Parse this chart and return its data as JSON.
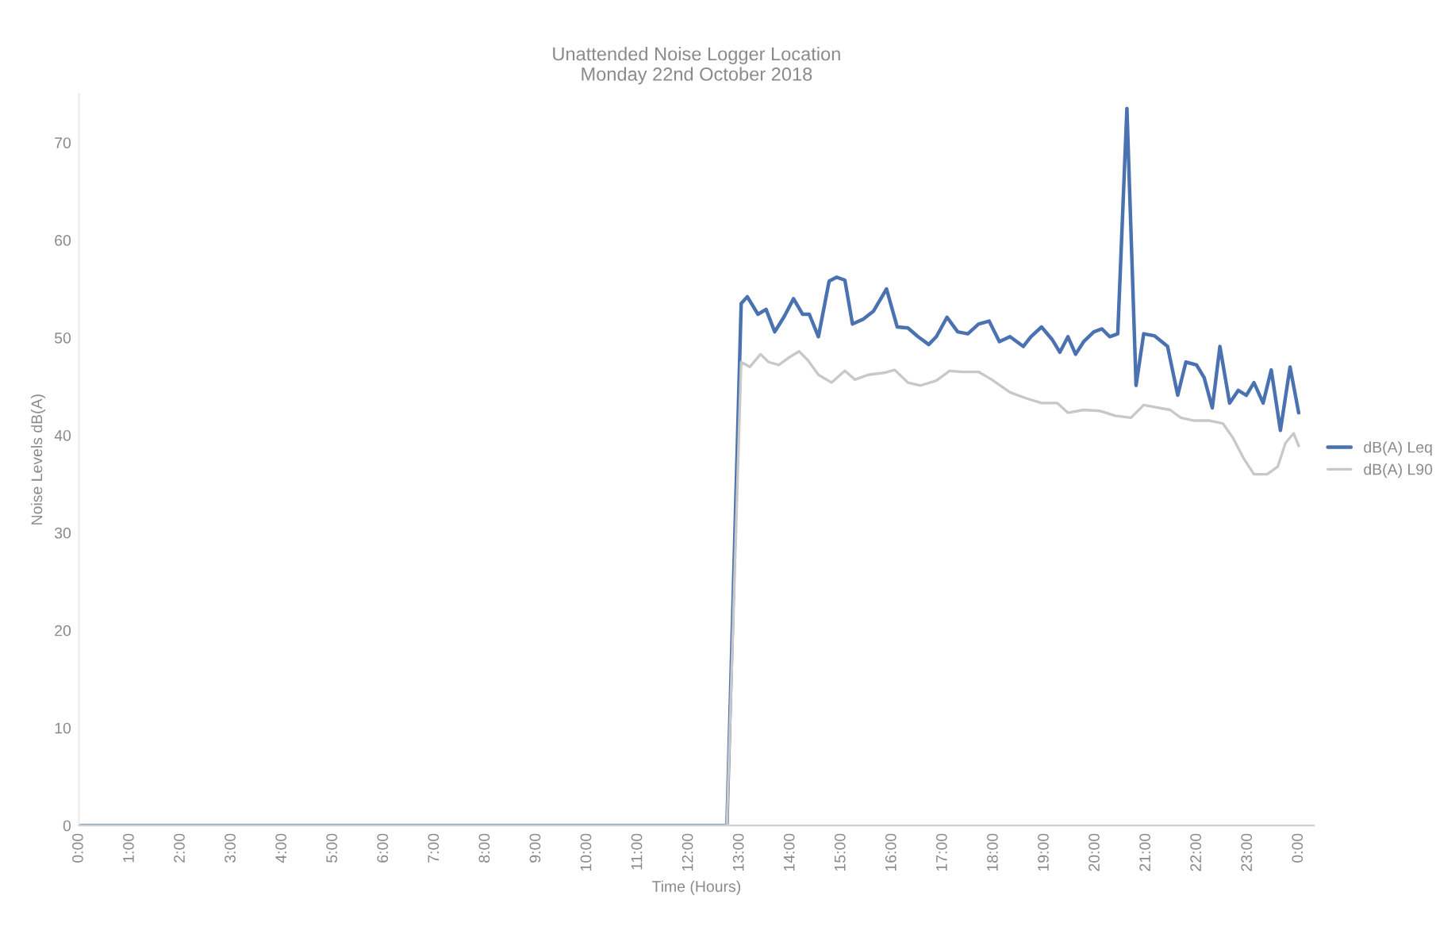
{
  "chart_data": {
    "type": "line",
    "title": "Unattended Noise Logger Location\nMonday 22nd October 2018",
    "xlabel": "Time (Hours)",
    "ylabel": "Noise Levels dB(A)",
    "xlim": [
      0,
      24.3
    ],
    "ylim": [
      0,
      75
    ],
    "xticks": [
      {
        "value": 0,
        "label": "0:00"
      },
      {
        "value": 1,
        "label": "1:00"
      },
      {
        "value": 2,
        "label": "2:00"
      },
      {
        "value": 3,
        "label": "3:00"
      },
      {
        "value": 4,
        "label": "4:00"
      },
      {
        "value": 5,
        "label": "5:00"
      },
      {
        "value": 6,
        "label": "6:00"
      },
      {
        "value": 7,
        "label": "7:00"
      },
      {
        "value": 8,
        "label": "8:00"
      },
      {
        "value": 9,
        "label": "9:00"
      },
      {
        "value": 10,
        "label": "10:00"
      },
      {
        "value": 11,
        "label": "11:00"
      },
      {
        "value": 12,
        "label": "12:00"
      },
      {
        "value": 13,
        "label": "13:00"
      },
      {
        "value": 14,
        "label": "14:00"
      },
      {
        "value": 15,
        "label": "15:00"
      },
      {
        "value": 16,
        "label": "16:00"
      },
      {
        "value": 17,
        "label": "17:00"
      },
      {
        "value": 18,
        "label": "18:00"
      },
      {
        "value": 19,
        "label": "19:00"
      },
      {
        "value": 20,
        "label": "20:00"
      },
      {
        "value": 21,
        "label": "21:00"
      },
      {
        "value": 22,
        "label": "22:00"
      },
      {
        "value": 23,
        "label": "23:00"
      },
      {
        "value": 24,
        "label": "0:00"
      }
    ],
    "yticks": [
      0,
      10,
      20,
      30,
      40,
      50,
      60,
      70
    ],
    "grid": false,
    "legend": "right",
    "marker": "none",
    "line_style": "solid",
    "series": [
      {
        "name": "dB(A) Leq",
        "color": "#4a72b0",
        "x": [
          0,
          12.75,
          13.03,
          13.15,
          13.36,
          13.52,
          13.69,
          13.88,
          14.06,
          14.24,
          14.37,
          14.55,
          14.76,
          14.91,
          15.07,
          15.22,
          15.43,
          15.63,
          15.89,
          16.1,
          16.31,
          16.51,
          16.72,
          16.87,
          17.08,
          17.29,
          17.49,
          17.7,
          17.91,
          18.11,
          18.32,
          18.58,
          18.73,
          18.94,
          19.15,
          19.3,
          19.46,
          19.61,
          19.77,
          19.97,
          20.13,
          20.28,
          20.44,
          20.62,
          20.8,
          20.95,
          21.16,
          21.42,
          21.62,
          21.78,
          21.99,
          22.14,
          22.3,
          22.45,
          22.64,
          22.81,
          22.97,
          23.12,
          23.3,
          23.46,
          23.64,
          23.83,
          24.0
        ],
        "values": [
          0,
          0,
          53.5,
          54.2,
          52.4,
          52.9,
          50.6,
          52.2,
          54,
          52.4,
          52.4,
          50.1,
          55.8,
          56.2,
          55.9,
          51.4,
          51.9,
          52.7,
          55,
          51.1,
          51,
          50.1,
          49.3,
          50.1,
          52.1,
          50.6,
          50.4,
          51.4,
          51.7,
          49.6,
          50.1,
          49.1,
          50.1,
          51.1,
          49.8,
          48.5,
          50.1,
          48.3,
          49.6,
          50.6,
          50.9,
          50.1,
          50.4,
          73.5,
          45.1,
          50.4,
          50.2,
          49.1,
          44.1,
          47.5,
          47.2,
          45.9,
          42.8,
          49.1,
          43.3,
          44.6,
          44.1,
          45.4,
          43.3,
          46.7,
          40.5,
          47,
          42.3
        ]
      },
      {
        "name": "dB(A) L90",
        "color": "#c8c8c8",
        "x": [
          0,
          12.75,
          13.03,
          13.2,
          13.41,
          13.57,
          13.77,
          13.98,
          14.17,
          14.34,
          14.55,
          14.81,
          15.07,
          15.27,
          15.53,
          15.84,
          16.05,
          16.31,
          16.56,
          16.87,
          17.13,
          17.39,
          17.7,
          17.96,
          18.32,
          18.63,
          18.94,
          19.25,
          19.46,
          19.77,
          20.08,
          20.39,
          20.7,
          20.95,
          21.16,
          21.47,
          21.68,
          21.94,
          22.25,
          22.51,
          22.71,
          22.92,
          23.12,
          23.38,
          23.59,
          23.74,
          23.9,
          24.0
        ],
        "values": [
          0,
          0,
          47.5,
          47,
          48.3,
          47.5,
          47.2,
          48,
          48.6,
          47.7,
          46.2,
          45.4,
          46.6,
          45.7,
          46.2,
          46.4,
          46.7,
          45.4,
          45.1,
          45.6,
          46.6,
          46.5,
          46.5,
          45.7,
          44.4,
          43.8,
          43.3,
          43.3,
          42.3,
          42.6,
          42.5,
          42,
          41.8,
          43.1,
          42.9,
          42.6,
          41.8,
          41.5,
          41.5,
          41.2,
          39.7,
          37.6,
          36,
          36,
          36.8,
          39.2,
          40.2,
          38.9
        ]
      }
    ]
  }
}
